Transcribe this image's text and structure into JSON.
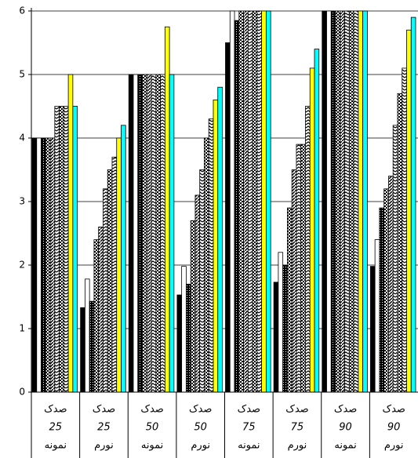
{
  "chart_data": {
    "type": "bar",
    "categories": [
      [
        "صدک",
        "25",
        "نمونه"
      ],
      [
        "صدک",
        "25",
        "نورم"
      ],
      [
        "صدک",
        "50",
        "نمونه"
      ],
      [
        "صدک",
        "50",
        "نورم"
      ],
      [
        "صدک",
        "75",
        "نمونه"
      ],
      [
        "صدک",
        "75",
        "نورم"
      ],
      [
        "صدک",
        "90",
        "نمونه"
      ],
      [
        "صدک",
        "90",
        "نورم"
      ]
    ],
    "series": [
      {
        "color": "#000000",
        "pattern": "solid",
        "values": [
          4,
          1.33,
          5,
          1.53,
          5.5,
          1.73,
          6,
          1.98
        ]
      },
      {
        "color": "#ffffff",
        "pattern": "solid",
        "values": [
          4,
          1.78,
          5,
          1.98,
          6,
          2.2,
          6,
          2.4
        ]
      },
      {
        "color": "#000000",
        "pattern": "dots",
        "values": [
          4,
          1.43,
          5,
          1.7,
          5.85,
          2.0,
          6,
          2.9
        ]
      },
      {
        "color": "#000000",
        "pattern": "checker",
        "values": [
          4,
          2.4,
          5,
          2.7,
          6,
          2.9,
          6,
          3.2
        ]
      },
      {
        "color": "#000000",
        "pattern": "stripes",
        "values": [
          4,
          2.6,
          5,
          3.1,
          6,
          3.5,
          6,
          3.4
        ]
      },
      {
        "color": "#000000",
        "pattern": "zigzag",
        "values": [
          4.5,
          3.2,
          5,
          3.5,
          6,
          3.9,
          6,
          4.2
        ]
      },
      {
        "color": "#000000",
        "pattern": "checker",
        "values": [
          4.5,
          3.5,
          5,
          4.0,
          6,
          3.9,
          6,
          4.7
        ]
      },
      {
        "color": "#000000",
        "pattern": "zigzag",
        "values": [
          4.5,
          3.7,
          5,
          4.3,
          6,
          4.5,
          6,
          5.1
        ]
      },
      {
        "color": "#ffff00",
        "pattern": "solid",
        "values": [
          5,
          4.0,
          5.75,
          4.6,
          6,
          5.1,
          6,
          5.7
        ]
      },
      {
        "color": "#00ffff",
        "pattern": "solid",
        "values": [
          4.5,
          4.2,
          5,
          4.8,
          6,
          5.4,
          6,
          5.9
        ]
      }
    ],
    "ylim": [
      0,
      6
    ],
    "yticks": [
      0,
      1,
      2,
      3,
      4,
      5,
      6
    ],
    "grid": true
  }
}
